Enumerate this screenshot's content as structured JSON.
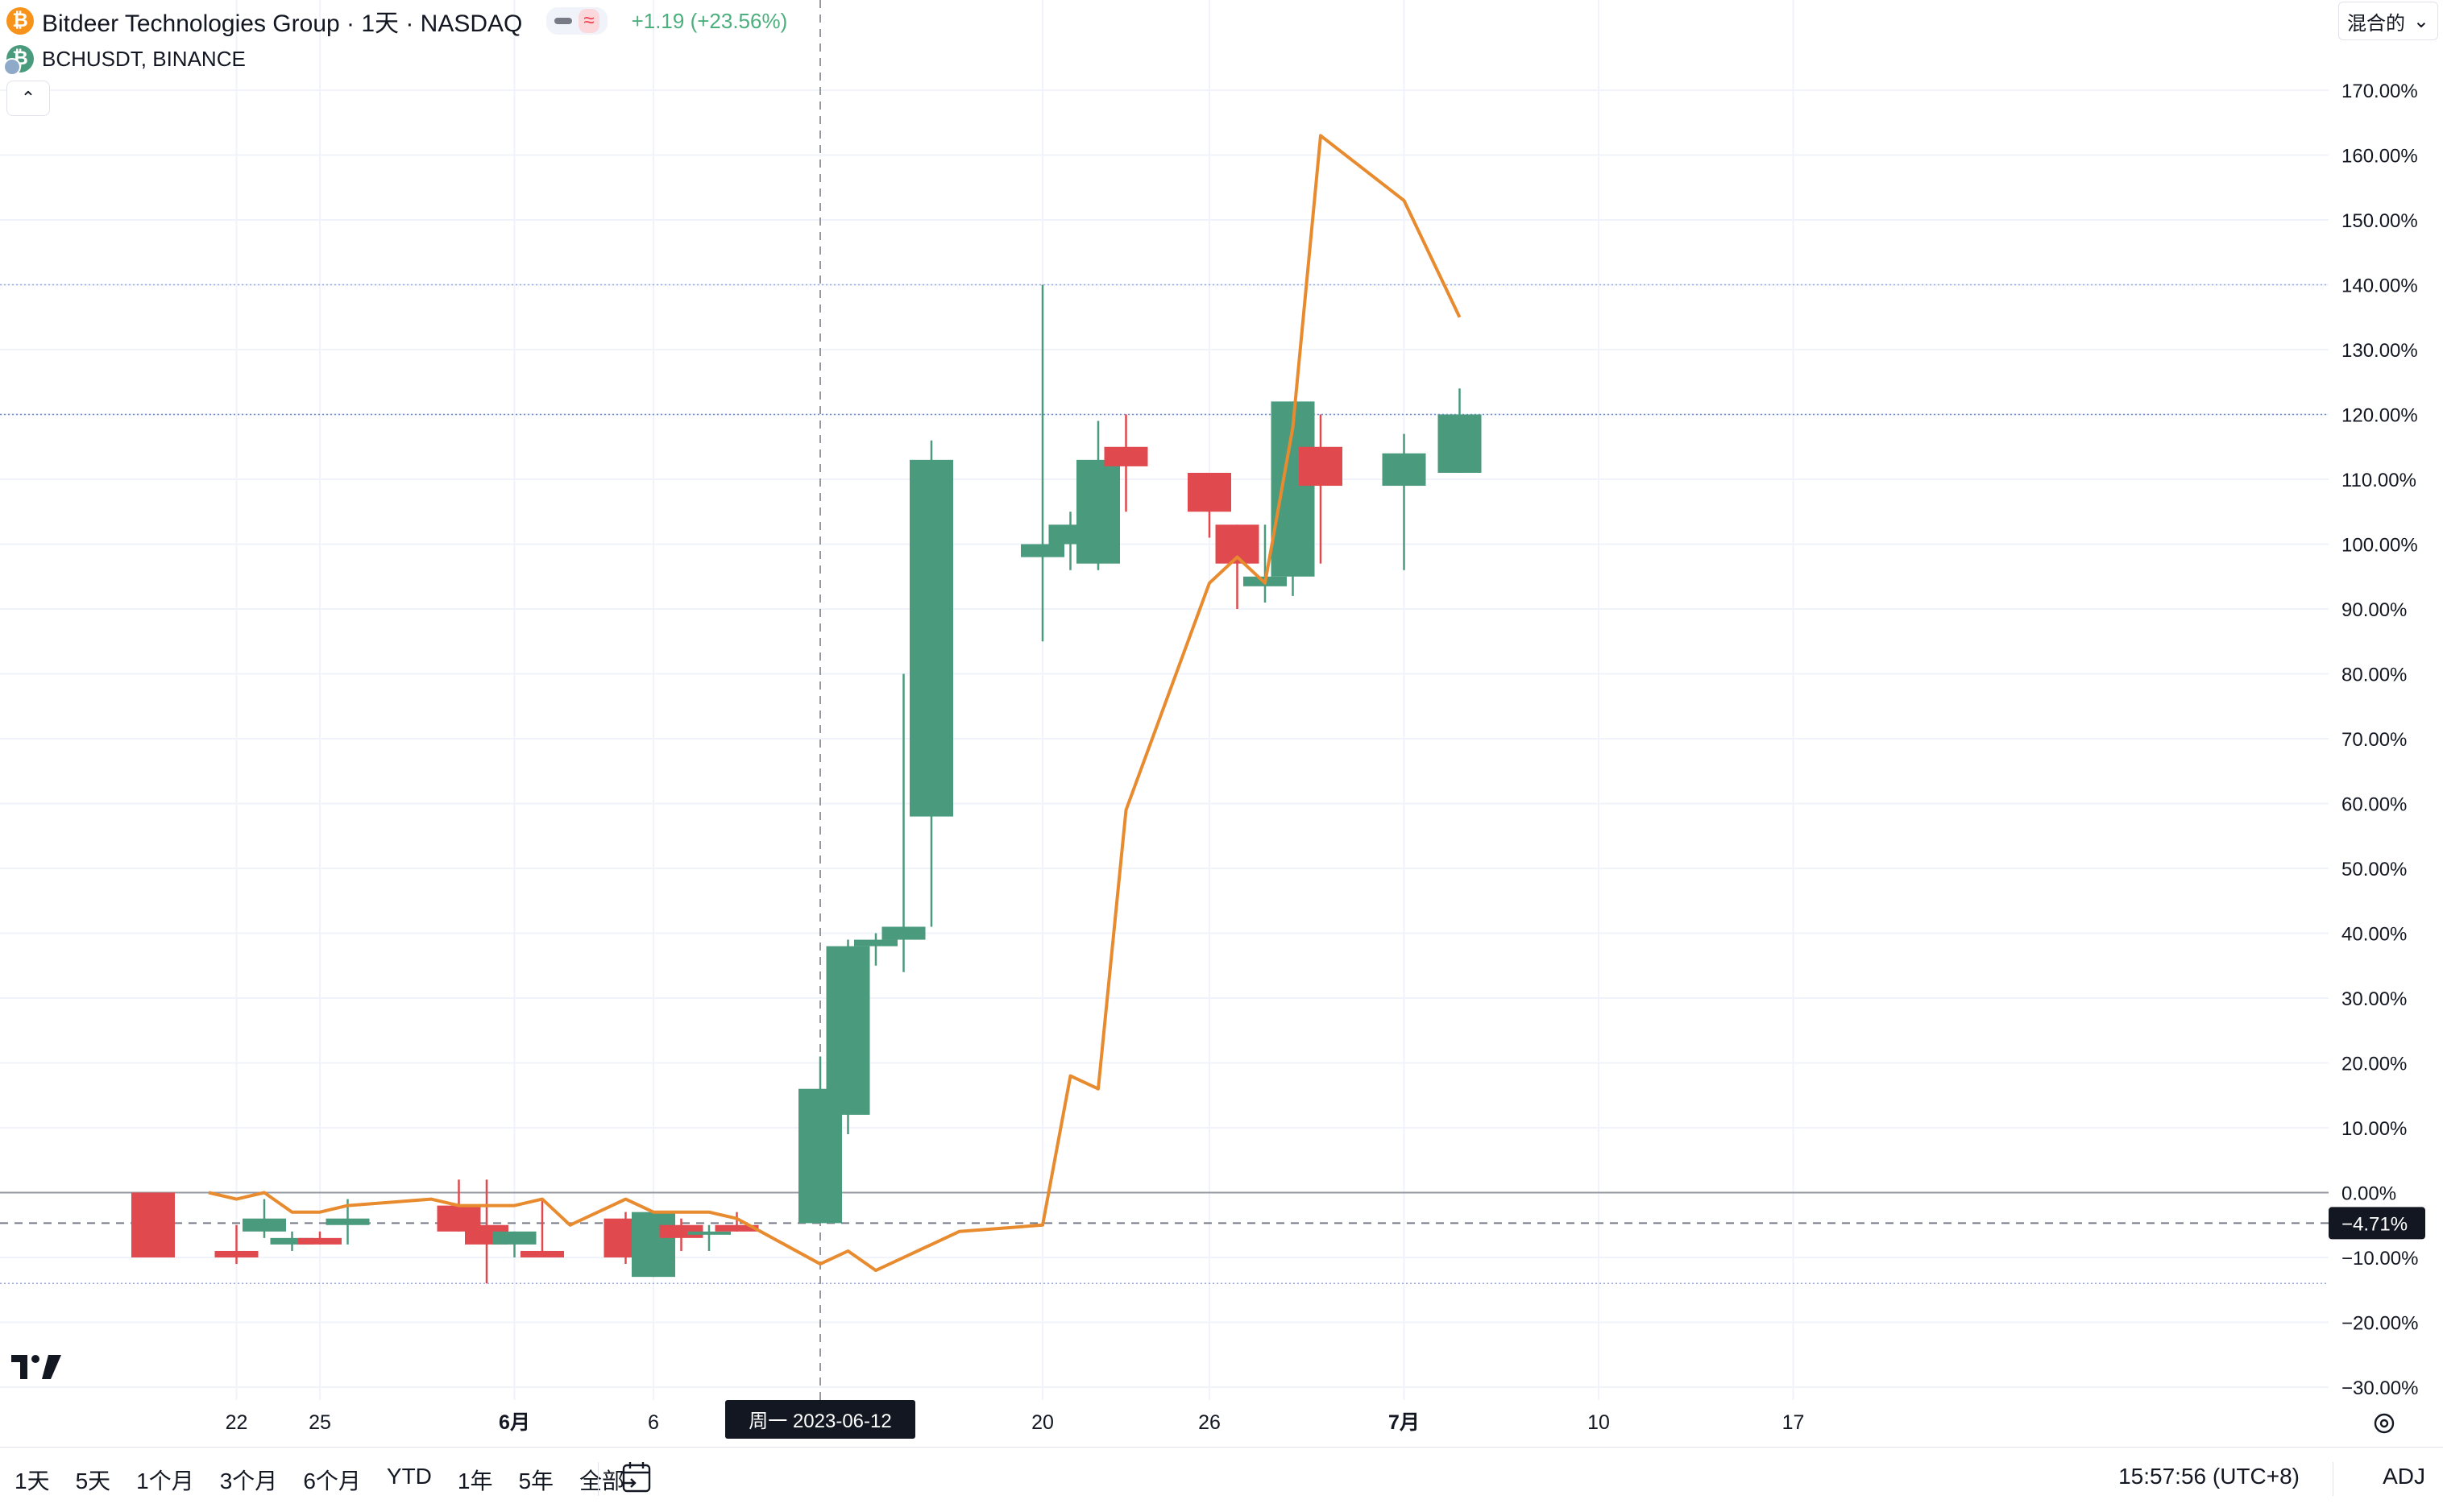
{
  "legend": {
    "title": "Bitdeer Technologies Group · 1天 · NASDAQ",
    "change": "+1.19 (+23.56%)",
    "compare_symbol": "BCHUSDT, BINANCE",
    "btc_glyph": "₿",
    "bch_glyph": "₿",
    "wave_glyph": "≈",
    "collapse_glyph": "⌃"
  },
  "toolbar": {
    "mode_label": "混合的",
    "mode_chevron": "⌄"
  },
  "bottom": {
    "ranges": [
      "1天",
      "5天",
      "1个月",
      "3个月",
      "6个月",
      "YTD",
      "1年",
      "5年",
      "全部"
    ],
    "clock": "15:57:56 (UTC+8)",
    "adj": "ADJ"
  },
  "colors": {
    "up": "#4a9a7d",
    "down": "#e04a4f",
    "line": "#e88a2e",
    "grid": "#f0f3fa",
    "axis_text": "#131722"
  },
  "chart_data": {
    "type": "candlestick+line",
    "unit": "%",
    "ylim": [
      -30,
      170
    ],
    "y_ticks": [
      170,
      160,
      150,
      140,
      130,
      120,
      110,
      100,
      90,
      80,
      70,
      60,
      50,
      40,
      30,
      20,
      10,
      0,
      -10,
      -20,
      -30
    ],
    "y_tick_labels": [
      "170.00%",
      "160.00%",
      "150.00%",
      "140.00%",
      "130.00%",
      "120.00%",
      "110.00%",
      "100.00%",
      "90.00%",
      "80.00%",
      "70.00%",
      "60.00%",
      "50.00%",
      "40.00%",
      "30.00%",
      "20.00%",
      "10.00%",
      "0.00%",
      "−10.00%",
      "−20.00%",
      "−30.00%"
    ],
    "x_ticks": [
      {
        "date": "2023-05-22",
        "label": "22"
      },
      {
        "date": "2023-05-25",
        "label": "25"
      },
      {
        "date": "2023-06-01",
        "label": "6月"
      },
      {
        "date": "2023-06-06",
        "label": "6"
      },
      {
        "date": "2023-06-20",
        "label": "20"
      },
      {
        "date": "2023-06-26",
        "label": "26"
      },
      {
        "date": "2023-07-03",
        "label": "7月"
      },
      {
        "date": "2023-07-10",
        "label": "10"
      },
      {
        "date": "2023-07-17",
        "label": "17"
      }
    ],
    "crosshair": {
      "date": "2023-06-12",
      "label": "周一 2023-06-12"
    },
    "last_value_label": "−4.71%",
    "last_value": -4.71,
    "hlines": [
      0,
      -4.71,
      140,
      120,
      -14
    ],
    "candles": [
      {
        "date": "2023-05-19",
        "o": 0,
        "h": 0,
        "l": -10,
        "c": -10
      },
      {
        "date": "2023-05-22",
        "o": -9,
        "h": -5,
        "l": -11,
        "c": -10
      },
      {
        "date": "2023-05-23",
        "o": -6,
        "h": -1,
        "l": -7,
        "c": -4
      },
      {
        "date": "2023-05-24",
        "o": -8,
        "h": -6,
        "l": -9,
        "c": -7
      },
      {
        "date": "2023-05-25",
        "o": -7,
        "h": -6,
        "l": -8,
        "c": -8
      },
      {
        "date": "2023-05-26",
        "o": -5,
        "h": -1,
        "l": -8,
        "c": -4
      },
      {
        "date": "2023-05-30",
        "o": -2,
        "h": 2,
        "l": -6,
        "c": -6
      },
      {
        "date": "2023-05-31",
        "o": -5,
        "h": 2,
        "l": -14,
        "c": -8
      },
      {
        "date": "2023-06-01",
        "o": -8,
        "h": -6,
        "l": -10,
        "c": -6
      },
      {
        "date": "2023-06-02",
        "o": -9,
        "h": -1,
        "l": -10,
        "c": -10
      },
      {
        "date": "2023-06-05",
        "o": -4,
        "h": -3,
        "l": -11,
        "c": -10
      },
      {
        "date": "2023-06-06",
        "o": -13,
        "h": -3,
        "l": -13,
        "c": -3
      },
      {
        "date": "2023-06-07",
        "o": -5,
        "h": -4,
        "l": -9,
        "c": -7
      },
      {
        "date": "2023-06-08",
        "o": -6.5,
        "h": -5,
        "l": -9,
        "c": -6
      },
      {
        "date": "2023-06-09",
        "o": -5,
        "h": -3,
        "l": -6,
        "c": -6
      },
      {
        "date": "2023-06-12",
        "o": -4.71,
        "h": 21,
        "l": -4.71,
        "c": 16
      },
      {
        "date": "2023-06-13",
        "o": 12,
        "h": 39,
        "l": 9,
        "c": 38
      },
      {
        "date": "2023-06-14",
        "o": 38,
        "h": 40,
        "l": 35,
        "c": 39
      },
      {
        "date": "2023-06-15",
        "o": 39,
        "h": 80,
        "l": 34,
        "c": 41
      },
      {
        "date": "2023-06-16",
        "o": 58,
        "h": 116,
        "l": 41,
        "c": 113
      },
      {
        "date": "2023-06-20",
        "o": 98,
        "h": 140,
        "l": 85,
        "c": 100
      },
      {
        "date": "2023-06-21",
        "o": 100,
        "h": 105,
        "l": 96,
        "c": 103
      },
      {
        "date": "2023-06-22",
        "o": 97,
        "h": 119,
        "l": 96,
        "c": 113
      },
      {
        "date": "2023-06-23",
        "o": 115,
        "h": 120,
        "l": 105,
        "c": 112
      },
      {
        "date": "2023-06-26",
        "o": 111,
        "h": 111,
        "l": 101,
        "c": 105
      },
      {
        "date": "2023-06-27",
        "o": 103,
        "h": 103,
        "l": 90,
        "c": 97
      },
      {
        "date": "2023-06-28",
        "o": 93.5,
        "h": 103,
        "l": 91,
        "c": 95
      },
      {
        "date": "2023-06-29",
        "o": 95,
        "h": 122,
        "l": 92,
        "c": 122
      },
      {
        "date": "2023-06-30",
        "o": 115,
        "h": 120,
        "l": 97,
        "c": 109
      },
      {
        "date": "2023-07-03",
        "o": 109,
        "h": 117,
        "l": 96,
        "c": 114
      },
      {
        "date": "2023-07-05",
        "o": 111,
        "h": 124,
        "l": 111,
        "c": 120
      }
    ],
    "line_series": {
      "name": "BCHUSDT, BINANCE",
      "points": [
        {
          "date": "2023-05-21",
          "y": 0
        },
        {
          "date": "2023-05-22",
          "y": -1
        },
        {
          "date": "2023-05-23",
          "y": 0
        },
        {
          "date": "2023-05-24",
          "y": -3
        },
        {
          "date": "2023-05-25",
          "y": -3
        },
        {
          "date": "2023-05-26",
          "y": -2
        },
        {
          "date": "2023-05-29",
          "y": -1
        },
        {
          "date": "2023-05-30",
          "y": -2
        },
        {
          "date": "2023-05-31",
          "y": -2
        },
        {
          "date": "2023-06-01",
          "y": -2
        },
        {
          "date": "2023-06-02",
          "y": -1
        },
        {
          "date": "2023-06-03",
          "y": -5
        },
        {
          "date": "2023-06-05",
          "y": -1
        },
        {
          "date": "2023-06-06",
          "y": -3
        },
        {
          "date": "2023-06-07",
          "y": -3
        },
        {
          "date": "2023-06-08",
          "y": -3
        },
        {
          "date": "2023-06-09",
          "y": -4
        },
        {
          "date": "2023-06-12",
          "y": -11
        },
        {
          "date": "2023-06-13",
          "y": -9
        },
        {
          "date": "2023-06-14",
          "y": -12
        },
        {
          "date": "2023-06-15",
          "y": -10
        },
        {
          "date": "2023-06-16",
          "y": -8
        },
        {
          "date": "2023-06-17",
          "y": -6
        },
        {
          "date": "2023-06-20",
          "y": -5
        },
        {
          "date": "2023-06-21",
          "y": 18
        },
        {
          "date": "2023-06-22",
          "y": 16
        },
        {
          "date": "2023-06-23",
          "y": 59
        },
        {
          "date": "2023-06-26",
          "y": 94
        },
        {
          "date": "2023-06-27",
          "y": 98
        },
        {
          "date": "2023-06-28",
          "y": 94
        },
        {
          "date": "2023-06-29",
          "y": 118
        },
        {
          "date": "2023-06-30",
          "y": 163
        },
        {
          "date": "2023-07-03",
          "y": 153
        },
        {
          "date": "2023-07-05",
          "y": 135
        }
      ]
    }
  }
}
